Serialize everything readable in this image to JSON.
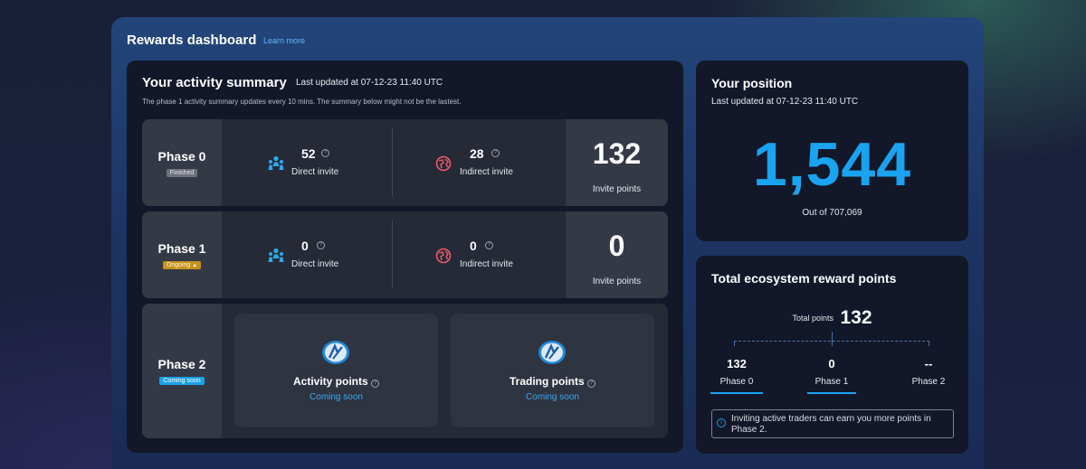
{
  "header": {
    "title": "Rewards dashboard",
    "learn_more": "Learn more"
  },
  "activity": {
    "title": "Your activity summary",
    "updated": "Last updated at 07-12-23 11:40 UTC",
    "note": "The phase 1 activity summary updates every 10 mins. The summary below might not be the lastest.",
    "phases": [
      {
        "name": "Phase 0",
        "badge": "Finished",
        "direct_value": "52",
        "direct_label": "Direct invite",
        "indirect_value": "28",
        "indirect_label": "Indirect invite",
        "points_value": "132",
        "points_label": "Invite points"
      },
      {
        "name": "Phase 1",
        "badge": "Ongoing",
        "direct_value": "0",
        "direct_label": "Direct invite",
        "indirect_value": "0",
        "indirect_label": "Indirect invite",
        "points_value": "0",
        "points_label": "Invite points"
      },
      {
        "name": "Phase 2",
        "badge": "Coming soon",
        "activity_title": "Activity points",
        "activity_status": "Coming soon",
        "trading_title": "Trading points",
        "trading_status": "Coming soon"
      }
    ]
  },
  "position": {
    "title": "Your position",
    "updated": "Last updated at 07-12-23 11:40 UTC",
    "rank": "1,544",
    "out_of": "Out of 707,069"
  },
  "total": {
    "title": "Total ecosystem reward points",
    "total_label": "Total points",
    "total_value": "132",
    "breakdown": [
      {
        "value": "132",
        "label": "Phase 0"
      },
      {
        "value": "0",
        "label": "Phase 1"
      },
      {
        "value": "--",
        "label": "Phase 2"
      }
    ],
    "notice": "Inviting active traders can earn you more points in Phase 2."
  },
  "colors": {
    "accent": "#1aa3f0",
    "finished_badge": "#6d717b",
    "ongoing_badge": "#c4921b",
    "soon_badge": "#1ba1e6",
    "direct_icon": "#2ea8ee",
    "indirect_icon": "#ee5a6a"
  },
  "icons": {
    "direct": "users-icon",
    "indirect": "globe-icon",
    "help": "question-icon",
    "coin": "coin-icon",
    "info": "info-icon"
  }
}
